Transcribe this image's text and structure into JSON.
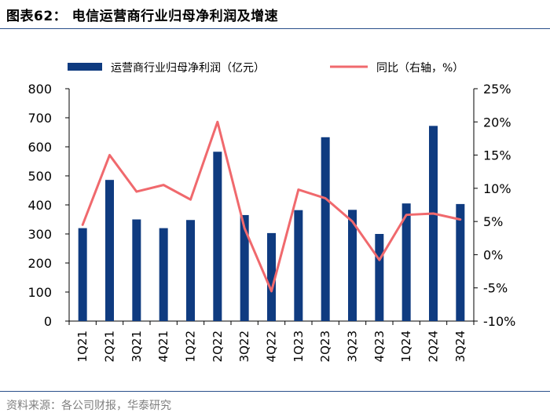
{
  "figure": {
    "title": "图表62：  电信运营商行业归母净利润及增速",
    "source": "资料来源：各公司财报，华泰研究"
  },
  "colors": {
    "bar": "#0f3b80",
    "line": "#f0696d",
    "rule": "#2a4f8a"
  },
  "chart_data": {
    "type": "bar+line",
    "categories": [
      "1Q21",
      "2Q21",
      "3Q21",
      "4Q21",
      "1Q22",
      "2Q22",
      "3Q22",
      "4Q22",
      "1Q23",
      "2Q23",
      "3Q23",
      "4Q23",
      "1Q24",
      "2Q24",
      "3Q24"
    ],
    "series": [
      {
        "name": "运营商行业归母净利润（亿元）",
        "type": "bar",
        "axis": "left",
        "values": [
          320,
          486,
          350,
          320,
          348,
          583,
          365,
          303,
          382,
          633,
          383,
          300,
          405,
          672,
          403
        ]
      },
      {
        "name": "同比（右轴，%）",
        "type": "line",
        "axis": "right",
        "values": [
          4.5,
          15.0,
          9.5,
          10.5,
          8.3,
          20.0,
          4.0,
          -5.5,
          9.8,
          8.5,
          5.0,
          -0.8,
          6.0,
          6.2,
          5.3
        ]
      }
    ],
    "y_left": {
      "min": 0,
      "max": 800,
      "ticks": [
        "0",
        "100",
        "200",
        "300",
        "400",
        "500",
        "600",
        "700",
        "800"
      ]
    },
    "y_right": {
      "min": -10,
      "max": 25,
      "ticks": [
        "-10%",
        "-5%",
        "0%",
        "5%",
        "10%",
        "15%",
        "20%",
        "25%"
      ]
    },
    "legend": {
      "position": "top"
    }
  }
}
